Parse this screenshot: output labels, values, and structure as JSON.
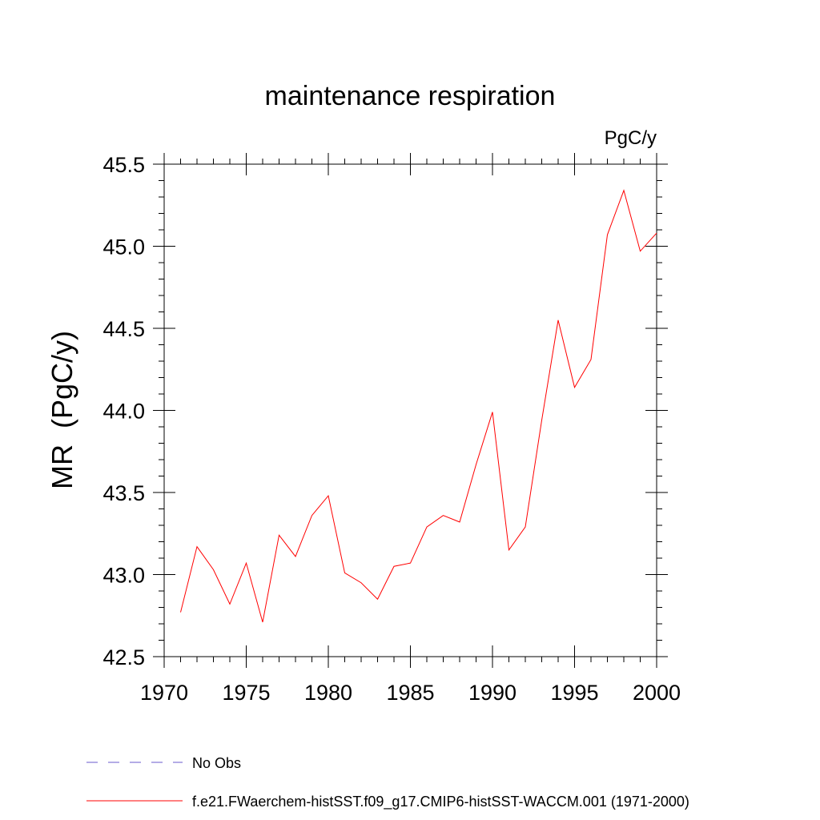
{
  "chart_data": {
    "type": "line",
    "title": "maintenance respiration",
    "units_label": "PgC/y",
    "ylabel": "MR  (PgC/y)",
    "xlabel": "",
    "xlim": [
      1970,
      2000
    ],
    "ylim": [
      42.5,
      45.5
    ],
    "x_ticks": [
      1970,
      1975,
      1980,
      1985,
      1990,
      1995,
      2000
    ],
    "x_tick_labels": [
      "1970",
      "1975",
      "1980",
      "1985",
      "1990",
      "1995",
      "2000"
    ],
    "y_ticks": [
      42.5,
      43.0,
      43.5,
      44.0,
      44.5,
      45.0,
      45.5
    ],
    "y_tick_labels": [
      "42.5",
      "43.0",
      "43.5",
      "44.0",
      "44.5",
      "45.0",
      "45.5"
    ],
    "grid": false,
    "legend_position": "bottom",
    "series": [
      {
        "name": "f.e21.FWaerchem-histSST.f09_g17.CMIP6-histSST-WACCM.001 (1971-2000)",
        "color": "#ff0000",
        "x": [
          1971,
          1972,
          1973,
          1974,
          1975,
          1976,
          1977,
          1978,
          1979,
          1980,
          1981,
          1982,
          1983,
          1984,
          1985,
          1986,
          1987,
          1988,
          1989,
          1990,
          1991,
          1992,
          1993,
          1994,
          1995,
          1996,
          1997,
          1998,
          1999,
          2000
        ],
        "values": [
          42.77,
          43.17,
          43.03,
          42.82,
          43.07,
          42.71,
          43.24,
          43.11,
          43.36,
          43.48,
          43.01,
          42.95,
          42.85,
          43.05,
          43.07,
          43.29,
          43.36,
          43.32,
          43.67,
          43.99,
          43.15,
          43.29,
          43.94,
          44.55,
          44.14,
          44.31,
          45.07,
          45.34,
          44.97,
          45.08
        ]
      }
    ],
    "legend": [
      {
        "label": "No Obs",
        "style": "dashed",
        "color": "#6a5acd"
      },
      {
        "label": "f.e21.FWaerchem-histSST.f09_g17.CMIP6-histSST-WACCM.001 (1971-2000)",
        "style": "solid",
        "color": "#ff0000"
      }
    ]
  }
}
